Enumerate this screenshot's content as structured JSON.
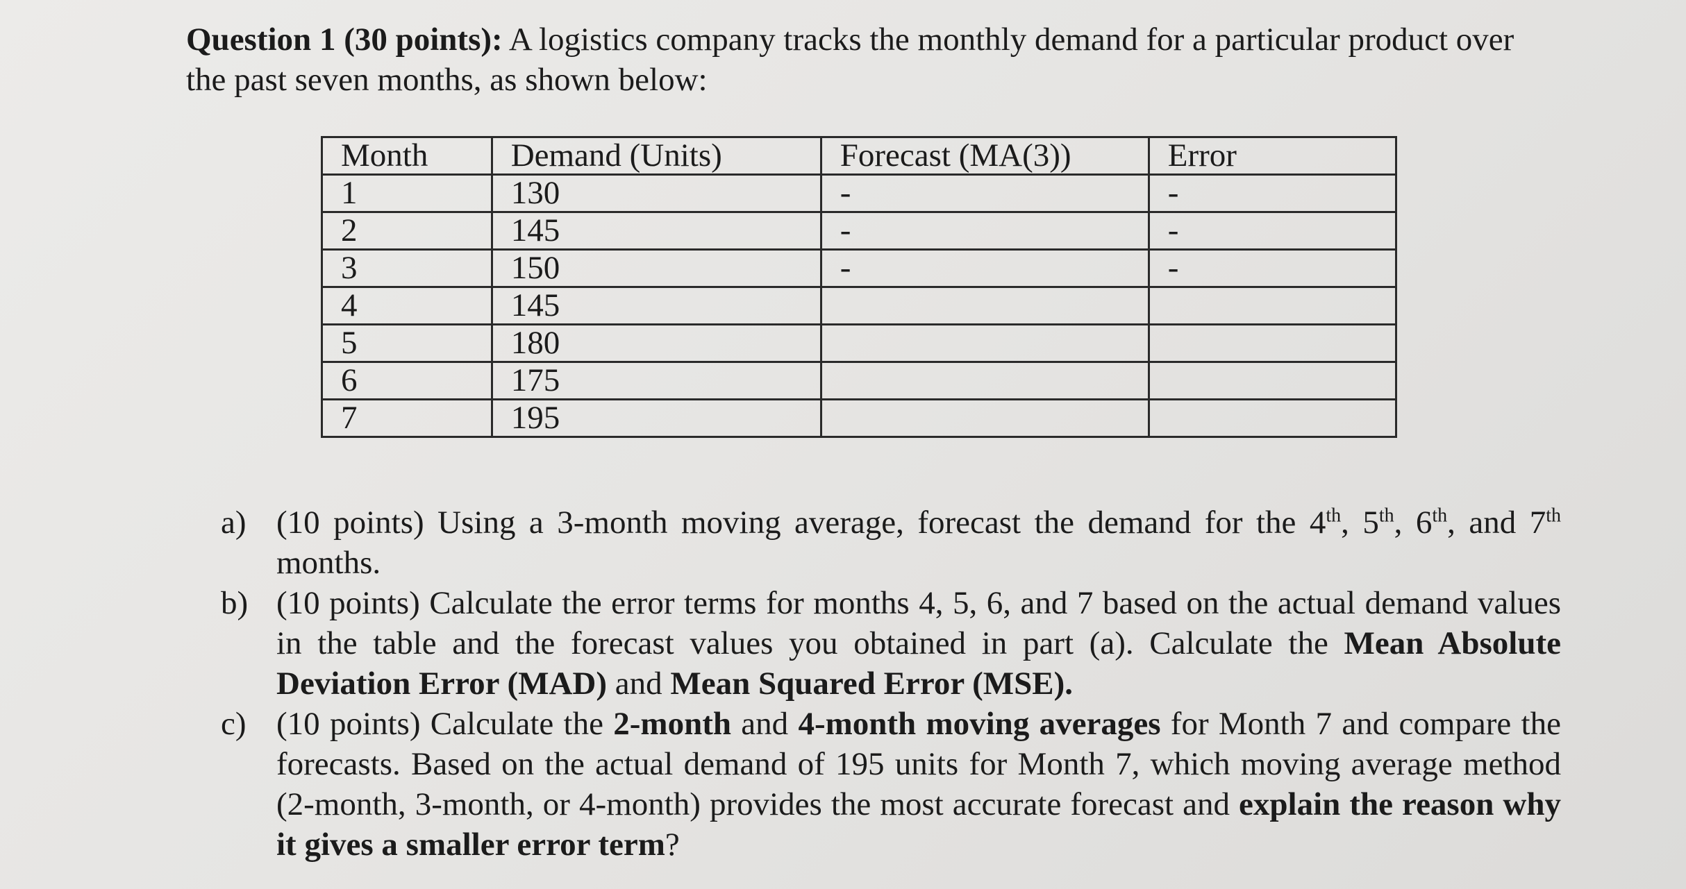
{
  "question_heading": "Question 1 (30 points):",
  "question_intro": " A logistics company tracks the monthly demand for a particular product over the past seven months, as shown below:",
  "table": {
    "headers": [
      "Month",
      "Demand (Units)",
      "Forecast (MA(3))",
      "Error"
    ],
    "rows": [
      [
        "1",
        "130",
        "-",
        "-"
      ],
      [
        "2",
        "145",
        "-",
        "-"
      ],
      [
        "3",
        "150",
        "-",
        "-"
      ],
      [
        "4",
        "145",
        "",
        ""
      ],
      [
        "5",
        "180",
        "",
        ""
      ],
      [
        "6",
        "175",
        "",
        ""
      ],
      [
        "7",
        "195",
        "",
        ""
      ]
    ]
  },
  "parts": {
    "a": {
      "label": "a)",
      "t1": "(10 points) Using a 3-month moving average, forecast the demand for the 4",
      "th1": "th",
      "t2": ", 5",
      "th2": "th",
      "t3": ", 6",
      "th3": "th",
      "t4": ", and 7",
      "th4": "th",
      "t5": " months."
    },
    "b": {
      "label": "b)",
      "t1": "(10 points) Calculate the error terms for months 4, 5, 6, and 7 based on the actual demand values in the table and the forecast values you obtained in part (a). Calculate the ",
      "bold1": "Mean Absolute Deviation Error (MAD)",
      "t2": " and ",
      "bold2": "Mean Squared Error (MSE).",
      "t3": ""
    },
    "c": {
      "label": "c)",
      "t1": "(10 points) Calculate the ",
      "bold1": "2-month",
      "t2": " and ",
      "bold2": "4-month moving averages",
      "t3": " for Month 7 and compare the forecasts. Based on the actual demand of 195 units for Month 7, which moving average method (2-month, 3-month, or 4-month) provides the most accurate forecast and ",
      "bold3": "explain the reason why it gives a smaller error term",
      "t4": "?"
    }
  }
}
